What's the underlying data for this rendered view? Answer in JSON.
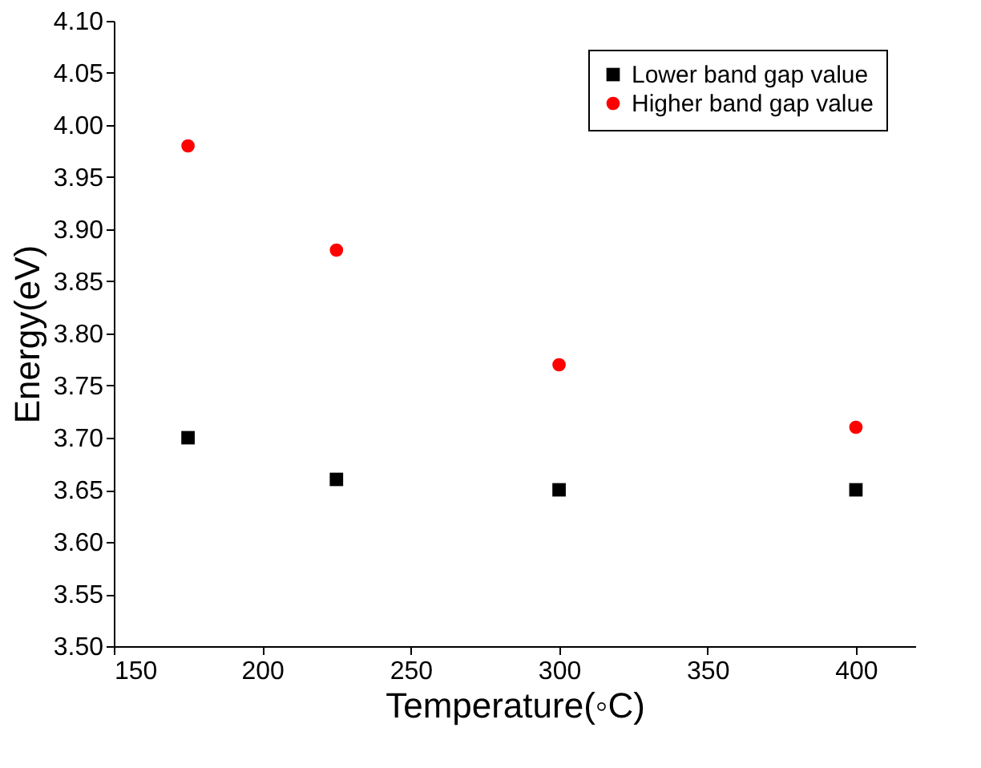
{
  "chart_data": {
    "type": "scatter",
    "xlabel": "Temperature(◦C)",
    "ylabel": "Energy(eV)",
    "x": [
      175,
      225,
      300,
      400
    ],
    "series": [
      {
        "name": "Lower band gap value",
        "color": "#000000",
        "marker": "square",
        "values": [
          3.7,
          3.66,
          3.65,
          3.65
        ]
      },
      {
        "name": "Higher band gap value",
        "color": "#ff0000",
        "marker": "circle",
        "values": [
          3.98,
          3.88,
          3.77,
          3.71
        ]
      }
    ],
    "xlim": [
      150,
      420
    ],
    "xticks": [
      150,
      200,
      250,
      300,
      350,
      400
    ],
    "ylim": [
      3.5,
      4.1
    ],
    "yticks": [
      {
        "value": 3.5,
        "label": "3.50"
      },
      {
        "value": 3.55,
        "label": "3.55"
      },
      {
        "value": 3.6,
        "label": "3.60"
      },
      {
        "value": 3.65,
        "label": "3.65"
      },
      {
        "value": 3.7,
        "label": "3.70"
      },
      {
        "value": 3.75,
        "label": "3.75"
      },
      {
        "value": 3.8,
        "label": "3.80"
      },
      {
        "value": 3.85,
        "label": "3.85"
      },
      {
        "value": 3.9,
        "label": "3.90"
      },
      {
        "value": 3.95,
        "label": "3.95"
      },
      {
        "value": 4.0,
        "label": "4.00"
      },
      {
        "value": 4.05,
        "label": "4.05"
      },
      {
        "value": 4.1,
        "label": "4.10"
      }
    ],
    "grid": false,
    "legend": "top right"
  }
}
